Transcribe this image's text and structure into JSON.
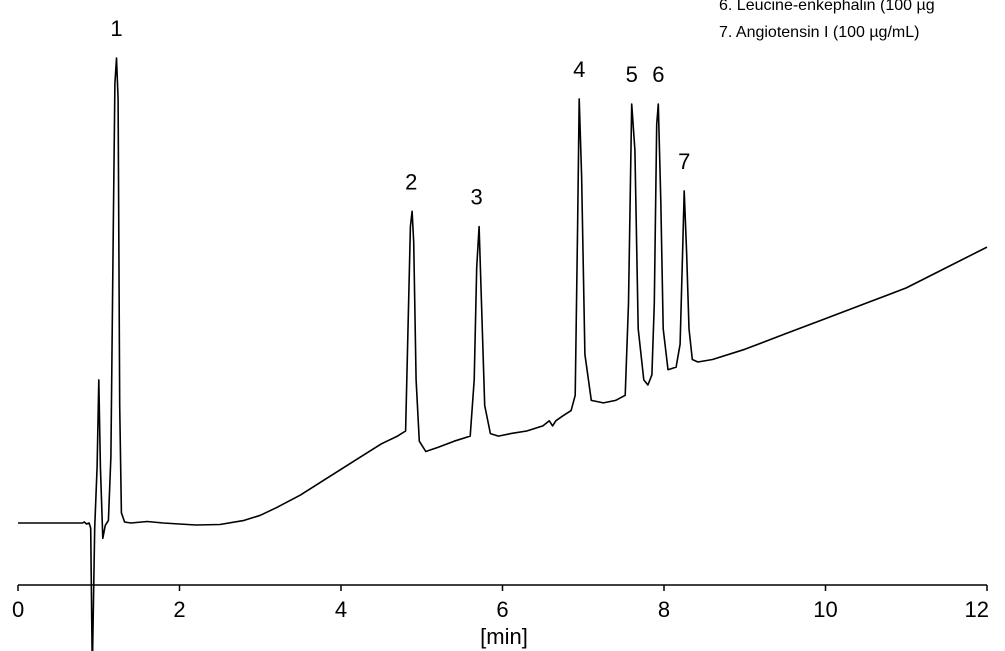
{
  "chart_data": {
    "type": "line",
    "title": "",
    "xlabel": "[min]",
    "ylabel": "",
    "xlim": [
      0,
      12
    ],
    "xticks": [
      0,
      2,
      4,
      6,
      8,
      10,
      12
    ],
    "xtick_labels": [
      "0",
      "2",
      "4",
      "6",
      "8",
      "10",
      "12"
    ],
    "grid": false,
    "legend_placement": "top-right",
    "legend_visible_lines": [
      "6. Leucine-enkephalin (100 µg",
      "7. Angiotensin I (100 µg/mL)"
    ],
    "peak_labels": [
      {
        "label": "1",
        "x": 1.22
      },
      {
        "label": "2",
        "x": 4.87
      },
      {
        "label": "3",
        "x": 5.68
      },
      {
        "label": "4",
        "x": 6.95
      },
      {
        "label": "5",
        "x": 7.6
      },
      {
        "label": "6",
        "x": 7.93
      },
      {
        "label": "7",
        "x": 8.25
      }
    ],
    "series": [
      {
        "color": "#000000",
        "x": [
          0.0,
          0.8,
          0.82,
          0.85,
          0.88,
          0.9,
          0.92,
          0.95,
          0.98,
          1.0,
          1.02,
          1.05,
          1.08,
          1.12,
          1.15,
          1.18,
          1.2,
          1.22,
          1.24,
          1.26,
          1.28,
          1.32,
          1.4,
          1.6,
          1.8,
          2.0,
          2.2,
          2.5,
          2.8,
          3.0,
          3.2,
          3.5,
          3.8,
          4.0,
          4.2,
          4.5,
          4.7,
          4.8,
          4.83,
          4.86,
          4.88,
          4.9,
          4.93,
          4.97,
          5.05,
          5.2,
          5.4,
          5.6,
          5.65,
          5.68,
          5.71,
          5.74,
          5.78,
          5.85,
          5.95,
          6.1,
          6.3,
          6.5,
          6.58,
          6.62,
          6.66,
          6.75,
          6.85,
          6.9,
          6.93,
          6.95,
          6.98,
          7.02,
          7.1,
          7.25,
          7.4,
          7.52,
          7.56,
          7.6,
          7.64,
          7.68,
          7.75,
          7.8,
          7.85,
          7.88,
          7.91,
          7.93,
          7.96,
          7.99,
          8.05,
          8.15,
          8.2,
          8.23,
          8.25,
          8.28,
          8.31,
          8.35,
          8.42,
          8.6,
          9.0,
          9.5,
          10.0,
          10.5,
          11.0,
          11.5,
          12.0
        ],
        "y": [
          17.0,
          17.0,
          17.2,
          16.8,
          17.0,
          16.0,
          -12.0,
          16.0,
          28.0,
          45.0,
          28.0,
          14.0,
          16.5,
          17.5,
          30.0,
          75.0,
          103.0,
          108.0,
          100.0,
          40.0,
          19.0,
          17.2,
          17.0,
          17.3,
          17.0,
          16.8,
          16.6,
          16.7,
          17.5,
          18.5,
          20.0,
          22.5,
          25.5,
          27.5,
          29.5,
          32.5,
          34.0,
          35.0,
          55.0,
          75.0,
          78.0,
          72.0,
          45.0,
          33.0,
          31.0,
          31.8,
          33.0,
          34.0,
          45.0,
          67.0,
          75.0,
          60.0,
          40.0,
          34.5,
          34.0,
          34.5,
          35.0,
          36.0,
          37.0,
          36.0,
          37.0,
          38.0,
          39.0,
          42.0,
          75.0,
          100.0,
          85.0,
          50.0,
          41.0,
          40.5,
          41.0,
          42.0,
          60.0,
          99.0,
          90.0,
          55.0,
          45.0,
          44.0,
          46.0,
          60.0,
          95.0,
          99.0,
          80.0,
          55.0,
          47.0,
          47.5,
          52.0,
          70.0,
          82.0,
          70.0,
          55.0,
          49.0,
          48.5,
          49.0,
          51.0,
          54.0,
          57.0,
          60.0,
          63.0,
          67.0,
          71.0
        ]
      }
    ]
  }
}
